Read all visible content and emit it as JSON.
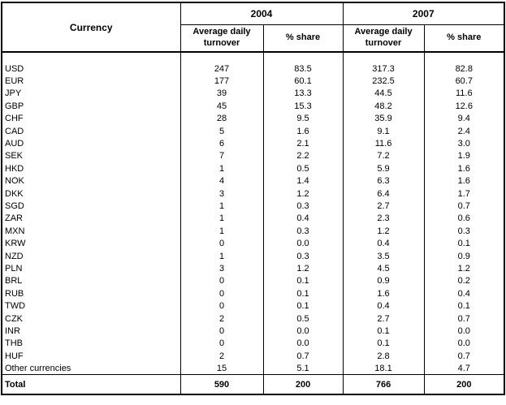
{
  "header": {
    "currency": "Currency",
    "year_2004": "2004",
    "year_2007": "2007",
    "avg_daily_turnover": "Average daily turnover",
    "pct_share": "% share"
  },
  "chart_data": {
    "type": "table",
    "title": "",
    "columns": [
      "Currency",
      "2004 Average daily turnover",
      "2004 % share",
      "2007 Average daily turnover",
      "2007 % share"
    ],
    "rows": [
      [
        "USD",
        "247",
        "83.5",
        "317.3",
        "82.8"
      ],
      [
        "EUR",
        "177",
        "60.1",
        "232.5",
        "60.7"
      ],
      [
        "JPY",
        "39",
        "13.3",
        "44.5",
        "11.6"
      ],
      [
        "GBP",
        "45",
        "15.3",
        "48.2",
        "12.6"
      ],
      [
        "CHF",
        "28",
        "9.5",
        "35.9",
        "9.4"
      ],
      [
        "CAD",
        "5",
        "1.6",
        "9.1",
        "2.4"
      ],
      [
        "AUD",
        "6",
        "2.1",
        "11.6",
        "3.0"
      ],
      [
        "SEK",
        "7",
        "2.2",
        "7.2",
        "1.9"
      ],
      [
        "HKD",
        "1",
        "0.5",
        "5.9",
        "1.6"
      ],
      [
        "NOK",
        "4",
        "1.4",
        "6.3",
        "1.6"
      ],
      [
        "DKK",
        "3",
        "1.2",
        "6.4",
        "1.7"
      ],
      [
        "SGD",
        "1",
        "0.3",
        "2.7",
        "0.7"
      ],
      [
        "ZAR",
        "1",
        "0.4",
        "2.3",
        "0.6"
      ],
      [
        "MXN",
        "1",
        "0.3",
        "1.2",
        "0.3"
      ],
      [
        "KRW",
        "0",
        "0.0",
        "0.4",
        "0.1"
      ],
      [
        "NZD",
        "1",
        "0.3",
        "3.5",
        "0.9"
      ],
      [
        "PLN",
        "3",
        "1.2",
        "4.5",
        "1.2"
      ],
      [
        "BRL",
        "0",
        "0.1",
        "0.9",
        "0.2"
      ],
      [
        "RUB",
        "0",
        "0.1",
        "1.6",
        "0.4"
      ],
      [
        "TWD",
        "0",
        "0.1",
        "0.4",
        "0.1"
      ],
      [
        "CZK",
        "2",
        "0.5",
        "2.7",
        "0.7"
      ],
      [
        "INR",
        "0",
        "0.0",
        "0.1",
        "0.0"
      ],
      [
        "THB",
        "0",
        "0.0",
        "0.1",
        "0.0"
      ],
      [
        "HUF",
        "2",
        "0.7",
        "2.8",
        "0.7"
      ],
      [
        "Other currencies",
        "15",
        "5.1",
        "18.1",
        "4.7"
      ]
    ],
    "total": [
      "Total",
      "590",
      "200",
      "766",
      "200"
    ]
  },
  "colors": {
    "border": "#000000",
    "text": "#000000",
    "background": "#ffffff"
  }
}
